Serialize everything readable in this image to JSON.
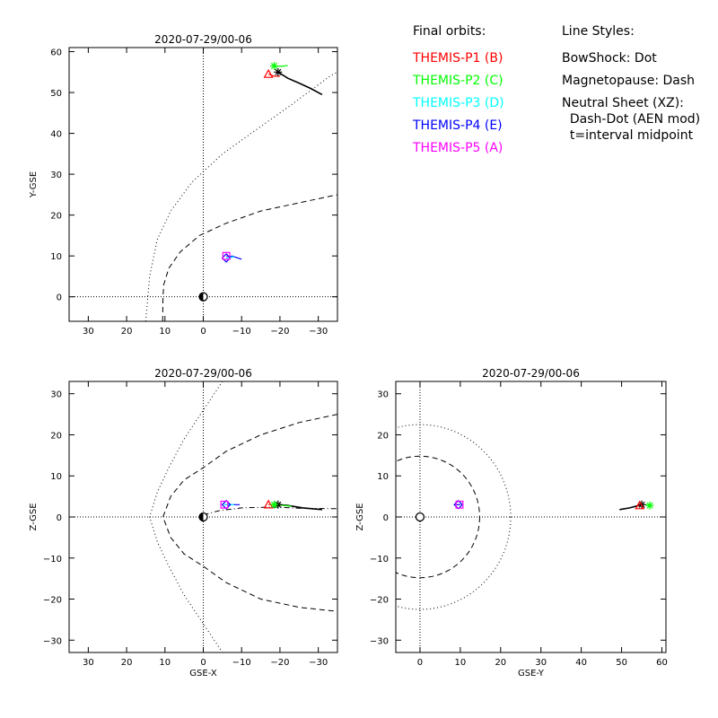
{
  "panels": [
    {
      "id": "xy",
      "title": "2020-07-29/00-06",
      "xlabel": "",
      "ylabel": "Y-GSE",
      "xlim": [
        35,
        -35
      ],
      "ylim": [
        61,
        -6
      ],
      "xticks": [
        30,
        20,
        10,
        0,
        -10,
        -20,
        -30
      ],
      "yticks": [
        0,
        10,
        20,
        30,
        40,
        50,
        60
      ],
      "earth_symbol": "half-filled",
      "bowshock": [
        [
          15,
          -6
        ],
        [
          14,
          5
        ],
        [
          12,
          14
        ],
        [
          8.5,
          21
        ],
        [
          3,
          28
        ],
        [
          -5,
          35
        ],
        [
          -14,
          41
        ],
        [
          -23,
          47
        ],
        [
          -33,
          54
        ],
        [
          -35,
          55
        ]
      ],
      "magnetopause": [
        [
          10.6,
          -6
        ],
        [
          10.5,
          0
        ],
        [
          10.3,
          3
        ],
        [
          9,
          7
        ],
        [
          6,
          11
        ],
        [
          1,
          15
        ],
        [
          -6,
          18
        ],
        [
          -15,
          21
        ],
        [
          -25,
          23
        ],
        [
          -35,
          25
        ]
      ],
      "neutral_sheet": [],
      "trajectories": [
        {
          "color": "#000000",
          "points": [
            [
              -19.5,
              55
            ],
            [
              -22,
              53.5
            ],
            [
              -25,
              52.3
            ],
            [
              -28,
              51
            ],
            [
              -31,
              49.5
            ]
          ]
        },
        {
          "color": "#ff0000",
          "points": [
            [
              -17,
              54.5
            ],
            [
              -18.5,
              54
            ],
            [
              -20,
              54
            ]
          ]
        },
        {
          "color": "#00ff00",
          "points": [
            [
              -18,
              56.5
            ],
            [
              -20.5,
              56.4
            ],
            [
              -22,
              56.6
            ]
          ]
        },
        {
          "color": "#0000ff",
          "points": [
            [
              -6,
              9.5
            ],
            [
              -7.5,
              10
            ],
            [
              -9,
              9.5
            ],
            [
              -10,
              9.2
            ]
          ]
        },
        {
          "color": "#00ffff",
          "points": [
            [
              -6,
              9.5
            ],
            [
              -8,
              9.8
            ]
          ]
        },
        {
          "color": "#ff00ff",
          "points": [
            [
              -6,
              10
            ],
            [
              -7,
              9.8
            ]
          ]
        }
      ],
      "markers": [
        {
          "symbol": "asterisk",
          "color": "#000000",
          "x": -19.5,
          "y": 55
        },
        {
          "symbol": "triangle",
          "color": "#ff0000",
          "x": -17,
          "y": 54.5
        },
        {
          "symbol": "asterisk",
          "color": "#00ff00",
          "x": -18.5,
          "y": 56.5
        },
        {
          "symbol": "diamond",
          "color": "#0000ff",
          "x": -6,
          "y": 9.5
        },
        {
          "symbol": "square",
          "color": "#ff00ff",
          "x": -6,
          "y": 10
        }
      ]
    },
    {
      "id": "xz",
      "title": "2020-07-29/00-06",
      "xlabel": "GSE-X",
      "ylabel": "Z-GSE",
      "xlim": [
        35,
        -35
      ],
      "ylim": [
        33,
        -33
      ],
      "xticks": [
        30,
        20,
        10,
        0,
        -10,
        -20,
        -30
      ],
      "yticks": [
        30,
        20,
        10,
        0,
        -10,
        -20,
        -30
      ],
      "earth_symbol": "half-filled",
      "bowshock": [
        [
          -5,
          33
        ],
        [
          0,
          26
        ],
        [
          5,
          19
        ],
        [
          9,
          12
        ],
        [
          12,
          6
        ],
        [
          14,
          0
        ],
        [
          12,
          -6
        ],
        [
          9,
          -12
        ],
        [
          5,
          -19
        ],
        [
          0,
          -26
        ],
        [
          -5,
          -33
        ]
      ],
      "magnetopause": [
        [
          -35,
          25
        ],
        [
          -25,
          23
        ],
        [
          -15,
          20
        ],
        [
          -6,
          16
        ],
        [
          0,
          12
        ],
        [
          5,
          9
        ],
        [
          8.5,
          5
        ],
        [
          10.5,
          0
        ],
        [
          8.5,
          -5
        ],
        [
          5,
          -9
        ],
        [
          0,
          -12
        ],
        [
          -6,
          -16
        ],
        [
          -15,
          -20
        ],
        [
          -25,
          -22
        ],
        [
          -35,
          -23
        ]
      ],
      "neutral_sheet": [
        [
          0,
          0.5
        ],
        [
          -4,
          1.5
        ],
        [
          -10,
          2.2
        ],
        [
          -18,
          2.4
        ],
        [
          -26,
          2.1
        ],
        [
          -35,
          2
        ]
      ],
      "trajectories": [
        {
          "color": "#000000",
          "points": [
            [
              -19.5,
              3
            ],
            [
              -22,
              2.8
            ],
            [
              -26,
              2.2
            ],
            [
              -31,
              1.8
            ]
          ]
        },
        {
          "color": "#ff0000",
          "points": [
            [
              -17,
              3
            ],
            [
              -19,
              3
            ]
          ]
        },
        {
          "color": "#00ff00",
          "points": [
            [
              -18.5,
              3
            ],
            [
              -21,
              2.8
            ],
            [
              -23,
              2.6
            ]
          ]
        },
        {
          "color": "#0000ff",
          "points": [
            [
              -5.5,
              3
            ],
            [
              -7.5,
              3
            ],
            [
              -9.5,
              3
            ]
          ]
        },
        {
          "color": "#00ffff",
          "points": [
            [
              -5.5,
              3
            ],
            [
              -8,
              3
            ]
          ]
        }
      ],
      "markers": [
        {
          "symbol": "asterisk",
          "color": "#000000",
          "x": -19.5,
          "y": 3
        },
        {
          "symbol": "triangle",
          "color": "#ff0000",
          "x": -17,
          "y": 3
        },
        {
          "symbol": "asterisk",
          "color": "#00ff00",
          "x": -18.5,
          "y": 3
        },
        {
          "symbol": "diamond",
          "color": "#0000ff",
          "x": -6,
          "y": 3
        },
        {
          "symbol": "square",
          "color": "#ff00ff",
          "x": -5.5,
          "y": 3
        }
      ]
    },
    {
      "id": "yz",
      "title": "2020-07-29/00-06",
      "xlabel": "GSE-Y",
      "ylabel": "Z-GSE",
      "xlim": [
        -6,
        61
      ],
      "ylim": [
        33,
        -33
      ],
      "xticks": [
        0,
        10,
        20,
        30,
        40,
        50,
        60
      ],
      "yticks": [
        30,
        20,
        10,
        0,
        -10,
        -20,
        -30
      ],
      "earth_symbol": "open",
      "bowshock_circle_radius": 22.5,
      "magnetopause_circle_radius": 14.8,
      "bowshock": [],
      "magnetopause": [],
      "neutral_sheet": [],
      "trajectories": [
        {
          "color": "#000000",
          "points": [
            [
              49.5,
              1.8
            ],
            [
              52,
              2.2
            ],
            [
              55,
              3
            ]
          ]
        },
        {
          "color": "#ff0000",
          "points": [
            [
              54,
              2.8
            ],
            [
              55.5,
              3
            ]
          ]
        },
        {
          "color": "#00ff00",
          "points": [
            [
              56,
              3
            ],
            [
              57,
              2.8
            ]
          ]
        },
        {
          "color": "#0000ff",
          "points": [
            [
              9,
              3
            ],
            [
              10,
              3
            ]
          ]
        }
      ],
      "markers": [
        {
          "symbol": "asterisk",
          "color": "#000000",
          "x": 55,
          "y": 3
        },
        {
          "symbol": "triangle",
          "color": "#ff0000",
          "x": 54.5,
          "y": 2.8
        },
        {
          "symbol": "asterisk",
          "color": "#00ff00",
          "x": 57,
          "y": 2.8
        },
        {
          "symbol": "diamond",
          "color": "#0000ff",
          "x": 9.5,
          "y": 3
        },
        {
          "symbol": "square",
          "color": "#ff00ff",
          "x": 9.8,
          "y": 3
        }
      ]
    }
  ],
  "legend": {
    "title": "Final orbits:",
    "items": [
      {
        "label": "THEMIS-P1 (B)",
        "color": "#ff0000"
      },
      {
        "label": "THEMIS-P2 (C)",
        "color": "#00ff00"
      },
      {
        "label": "THEMIS-P3 (D)",
        "color": "#00ffff"
      },
      {
        "label": "THEMIS-P4 (E)",
        "color": "#0000ff"
      },
      {
        "label": "THEMIS-P5 (A)",
        "color": "#ff00ff"
      }
    ]
  },
  "line_styles": {
    "title": "Line Styles:",
    "lines": [
      "BowShock: Dot",
      "Magnetopause: Dash",
      "Neutral Sheet (XZ):",
      "  Dash-Dot (AEN mod)",
      "  t=interval midpoint"
    ]
  },
  "chart_data": [
    {
      "type": "line",
      "title": "2020-07-29/00-06",
      "xlabel": "",
      "ylabel": "Y-GSE",
      "xlim": [
        35,
        -35
      ],
      "ylim": [
        61,
        -6
      ],
      "series": [
        {
          "name": "THEMIS-P1 (B)",
          "x": [
            -17,
            -20
          ],
          "y": [
            54.5,
            54
          ]
        },
        {
          "name": "THEMIS-P2 (C)",
          "x": [
            -18,
            -22
          ],
          "y": [
            56.5,
            56.6
          ]
        },
        {
          "name": "THEMIS-P3 (D)",
          "x": [
            -6,
            -8
          ],
          "y": [
            9.5,
            9.8
          ]
        },
        {
          "name": "THEMIS-P4 (E)",
          "x": [
            -6,
            -10
          ],
          "y": [
            9.5,
            9.2
          ]
        },
        {
          "name": "THEMIS-P5 (A)",
          "x": [
            -6,
            -7
          ],
          "y": [
            10,
            9.8
          ]
        }
      ]
    },
    {
      "type": "line",
      "title": "2020-07-29/00-06",
      "xlabel": "GSE-X",
      "ylabel": "Z-GSE",
      "xlim": [
        35,
        -35
      ],
      "ylim": [
        -33,
        33
      ],
      "series": [
        {
          "name": "THEMIS-P1 (B)",
          "x": [
            -17,
            -19
          ],
          "y": [
            3,
            3
          ]
        },
        {
          "name": "THEMIS-P2 (C)",
          "x": [
            -18.5,
            -23
          ],
          "y": [
            3,
            2.6
          ]
        },
        {
          "name": "THEMIS-P3 (D)",
          "x": [
            -5.5,
            -8
          ],
          "y": [
            3,
            3
          ]
        },
        {
          "name": "THEMIS-P4 (E)",
          "x": [
            -6,
            -9.5
          ],
          "y": [
            3,
            3
          ]
        },
        {
          "name": "THEMIS-P5 (A)",
          "x": [
            -5.5
          ],
          "y": [
            3
          ]
        }
      ]
    },
    {
      "type": "line",
      "title": "2020-07-29/00-06",
      "xlabel": "GSE-Y",
      "ylabel": "Z-GSE",
      "xlim": [
        -6,
        61
      ],
      "ylim": [
        -33,
        33
      ],
      "series": [
        {
          "name": "THEMIS-P1 (B)",
          "x": [
            54,
            55.5
          ],
          "y": [
            2.8,
            3
          ]
        },
        {
          "name": "THEMIS-P2 (C)",
          "x": [
            56,
            57
          ],
          "y": [
            3,
            2.8
          ]
        },
        {
          "name": "THEMIS-P3 (D)",
          "x": [
            9.5
          ],
          "y": [
            3
          ]
        },
        {
          "name": "THEMIS-P4 (E)",
          "x": [
            9,
            10
          ],
          "y": [
            3,
            3
          ]
        },
        {
          "name": "THEMIS-P5 (A)",
          "x": [
            9.8
          ],
          "y": [
            3
          ]
        }
      ]
    }
  ]
}
